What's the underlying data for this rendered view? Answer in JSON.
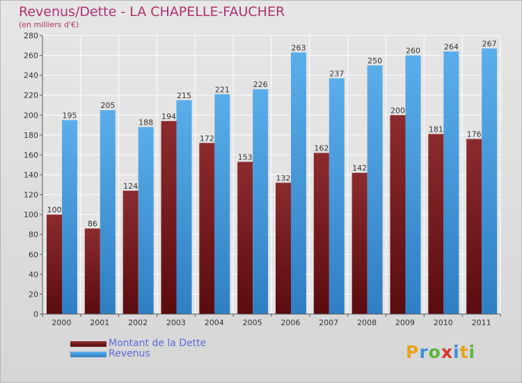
{
  "title": "Revenus/Dette - LA CHAPELLE-FAUCHER",
  "subtitle": "(en milliers d'€)",
  "colors": {
    "dette": "#7a1f22",
    "revenus": "#4ea3e4",
    "title": "#b0306a",
    "legend_text": "#5a6bd6"
  },
  "chart_data": {
    "type": "bar",
    "categories": [
      "2000",
      "2001",
      "2002",
      "2003",
      "2004",
      "2005",
      "2006",
      "2007",
      "2008",
      "2009",
      "2010",
      "2011"
    ],
    "series": [
      {
        "name": "Montant de la Dette",
        "values": [
          100,
          86,
          124,
          194,
          172,
          153,
          132,
          162,
          142,
          200,
          181,
          176
        ]
      },
      {
        "name": "Revenus",
        "values": [
          195,
          205,
          188,
          215,
          221,
          226,
          263,
          237,
          250,
          260,
          264,
          267
        ]
      }
    ],
    "ylim": [
      0,
      280
    ],
    "yticks": [
      0,
      20,
      40,
      60,
      80,
      100,
      120,
      140,
      160,
      180,
      200,
      220,
      240,
      260,
      280
    ],
    "grid": true,
    "legend": "bottom-left"
  },
  "legend": {
    "items": [
      {
        "label": "Montant de la Dette",
        "color": "#7a1f22"
      },
      {
        "label": "Revenus",
        "color": "#4ea3e4"
      }
    ]
  },
  "logo": {
    "letters": [
      "P",
      "r",
      "o",
      "x",
      "i",
      "t",
      "i"
    ],
    "colors": [
      "#e8a21a",
      "#3a8fd8",
      "#5bb33a",
      "#d8332a",
      "#3a8fd8",
      "#e8a21a",
      "#5bb33a"
    ]
  }
}
